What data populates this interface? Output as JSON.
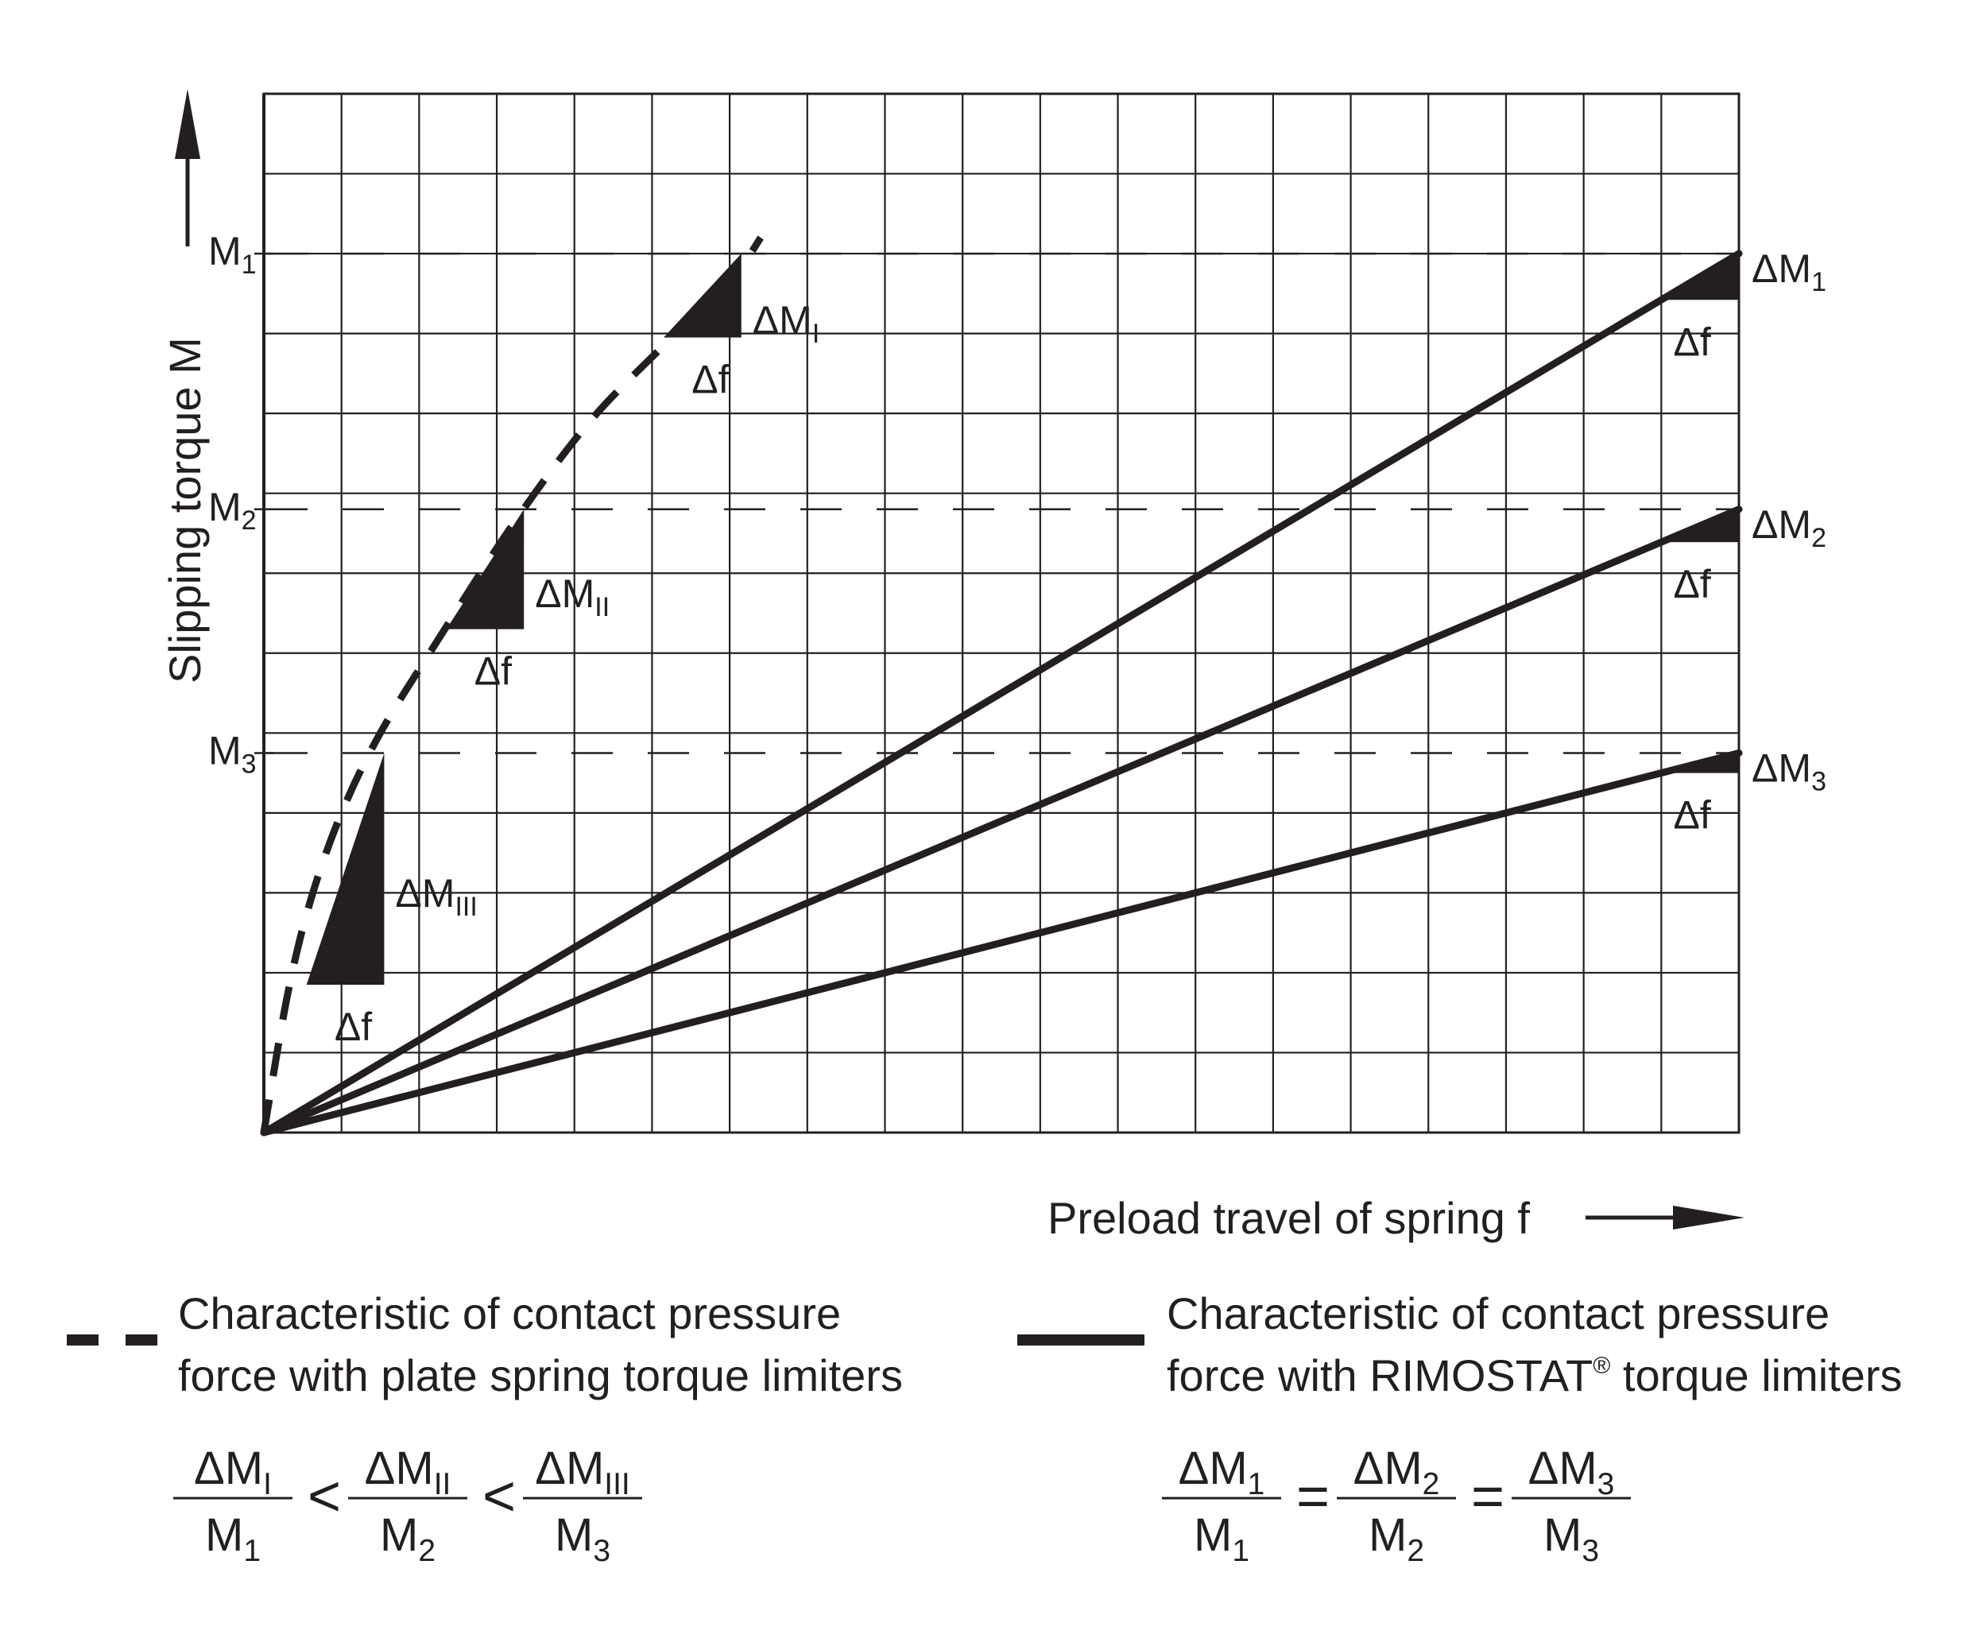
{
  "colors": {
    "ink": "#231f20",
    "grid": "#231f20",
    "background": "#ffffff"
  },
  "chart_data": {
    "type": "line",
    "xlabel": "Preload travel of spring f",
    "ylabel": "Slipping torque M",
    "grid": true,
    "xlim": [
      0,
      19
    ],
    "ylim": [
      0,
      13
    ],
    "reference_levels": [
      {
        "label_main": "M",
        "label_sub": "1",
        "y": 11
      },
      {
        "label_main": "M",
        "label_sub": "2",
        "y": 7.8
      },
      {
        "label_main": "M",
        "label_sub": "3",
        "y": 4.75
      }
    ],
    "series": [
      {
        "name": "Characteristic of contact pressure force with plate spring torque limiters",
        "style": "dashed",
        "points": [
          [
            0,
            0
          ],
          [
            0.3,
            1.7
          ],
          [
            0.6,
            2.9
          ],
          [
            1.0,
            4.0
          ],
          [
            1.5,
            5.0
          ],
          [
            2.2,
            6.1
          ],
          [
            3.2,
            7.6
          ],
          [
            4.2,
            8.9
          ],
          [
            5.2,
            9.9
          ],
          [
            6.1,
            10.8
          ],
          [
            6.4,
            11.2
          ]
        ],
        "steps": [
          {
            "x0": 0.55,
            "x1": 1.55,
            "y0": 1.85,
            "y1": 4.75,
            "dM_main": "ΔM",
            "dM_sub": "III",
            "df": "Δf"
          },
          {
            "x0": 2.35,
            "x1": 3.35,
            "y0": 6.3,
            "y1": 7.8,
            "dM_main": "ΔM",
            "dM_sub": "II",
            "df": "Δf"
          },
          {
            "x0": 5.15,
            "x1": 6.15,
            "y0": 9.95,
            "y1": 11,
            "dM_main": "ΔM",
            "dM_sub": "I",
            "df": "Δf"
          }
        ]
      },
      {
        "name": "Characteristic of contact pressure force with RIMOSTAT® torque limiters",
        "style": "solid",
        "lines": [
          {
            "x": [
              0,
              19
            ],
            "y": [
              0,
              11
            ],
            "dM_main": "ΔM",
            "dM_sub": "1",
            "df": "Δf"
          },
          {
            "x": [
              0,
              19
            ],
            "y": [
              0,
              7.8
            ],
            "dM_main": "ΔM",
            "dM_sub": "2",
            "df": "Δf"
          },
          {
            "x": [
              0,
              19
            ],
            "y": [
              0,
              4.75
            ],
            "dM_main": "ΔM",
            "dM_sub": "3",
            "df": "Δf"
          }
        ]
      }
    ]
  },
  "legend": {
    "plate": {
      "line1": "Characteristic of contact pressure",
      "line2": "force with plate spring torque limiters",
      "formula": [
        {
          "num": "ΔM",
          "num_sub": "I",
          "den": "M",
          "den_sub": "1"
        },
        {
          "op": "<"
        },
        {
          "num": "ΔM",
          "num_sub": "II",
          "den": "M",
          "den_sub": "2"
        },
        {
          "op": "<"
        },
        {
          "num": "ΔM",
          "num_sub": "III",
          "den": "M",
          "den_sub": "3"
        }
      ]
    },
    "rimostat": {
      "line1": "Characteristic of contact pressure",
      "line2_a": "force with RIMOSTAT",
      "line2_reg": "®",
      "line2_b": " torque limiters",
      "formula": [
        {
          "num": "ΔM",
          "num_sub": "1",
          "den": "M",
          "den_sub": "1"
        },
        {
          "op": "="
        },
        {
          "num": "ΔM",
          "num_sub": "2",
          "den": "M",
          "den_sub": "2"
        },
        {
          "op": "="
        },
        {
          "num": "ΔM",
          "num_sub": "3",
          "den": "M",
          "den_sub": "3"
        }
      ]
    }
  }
}
